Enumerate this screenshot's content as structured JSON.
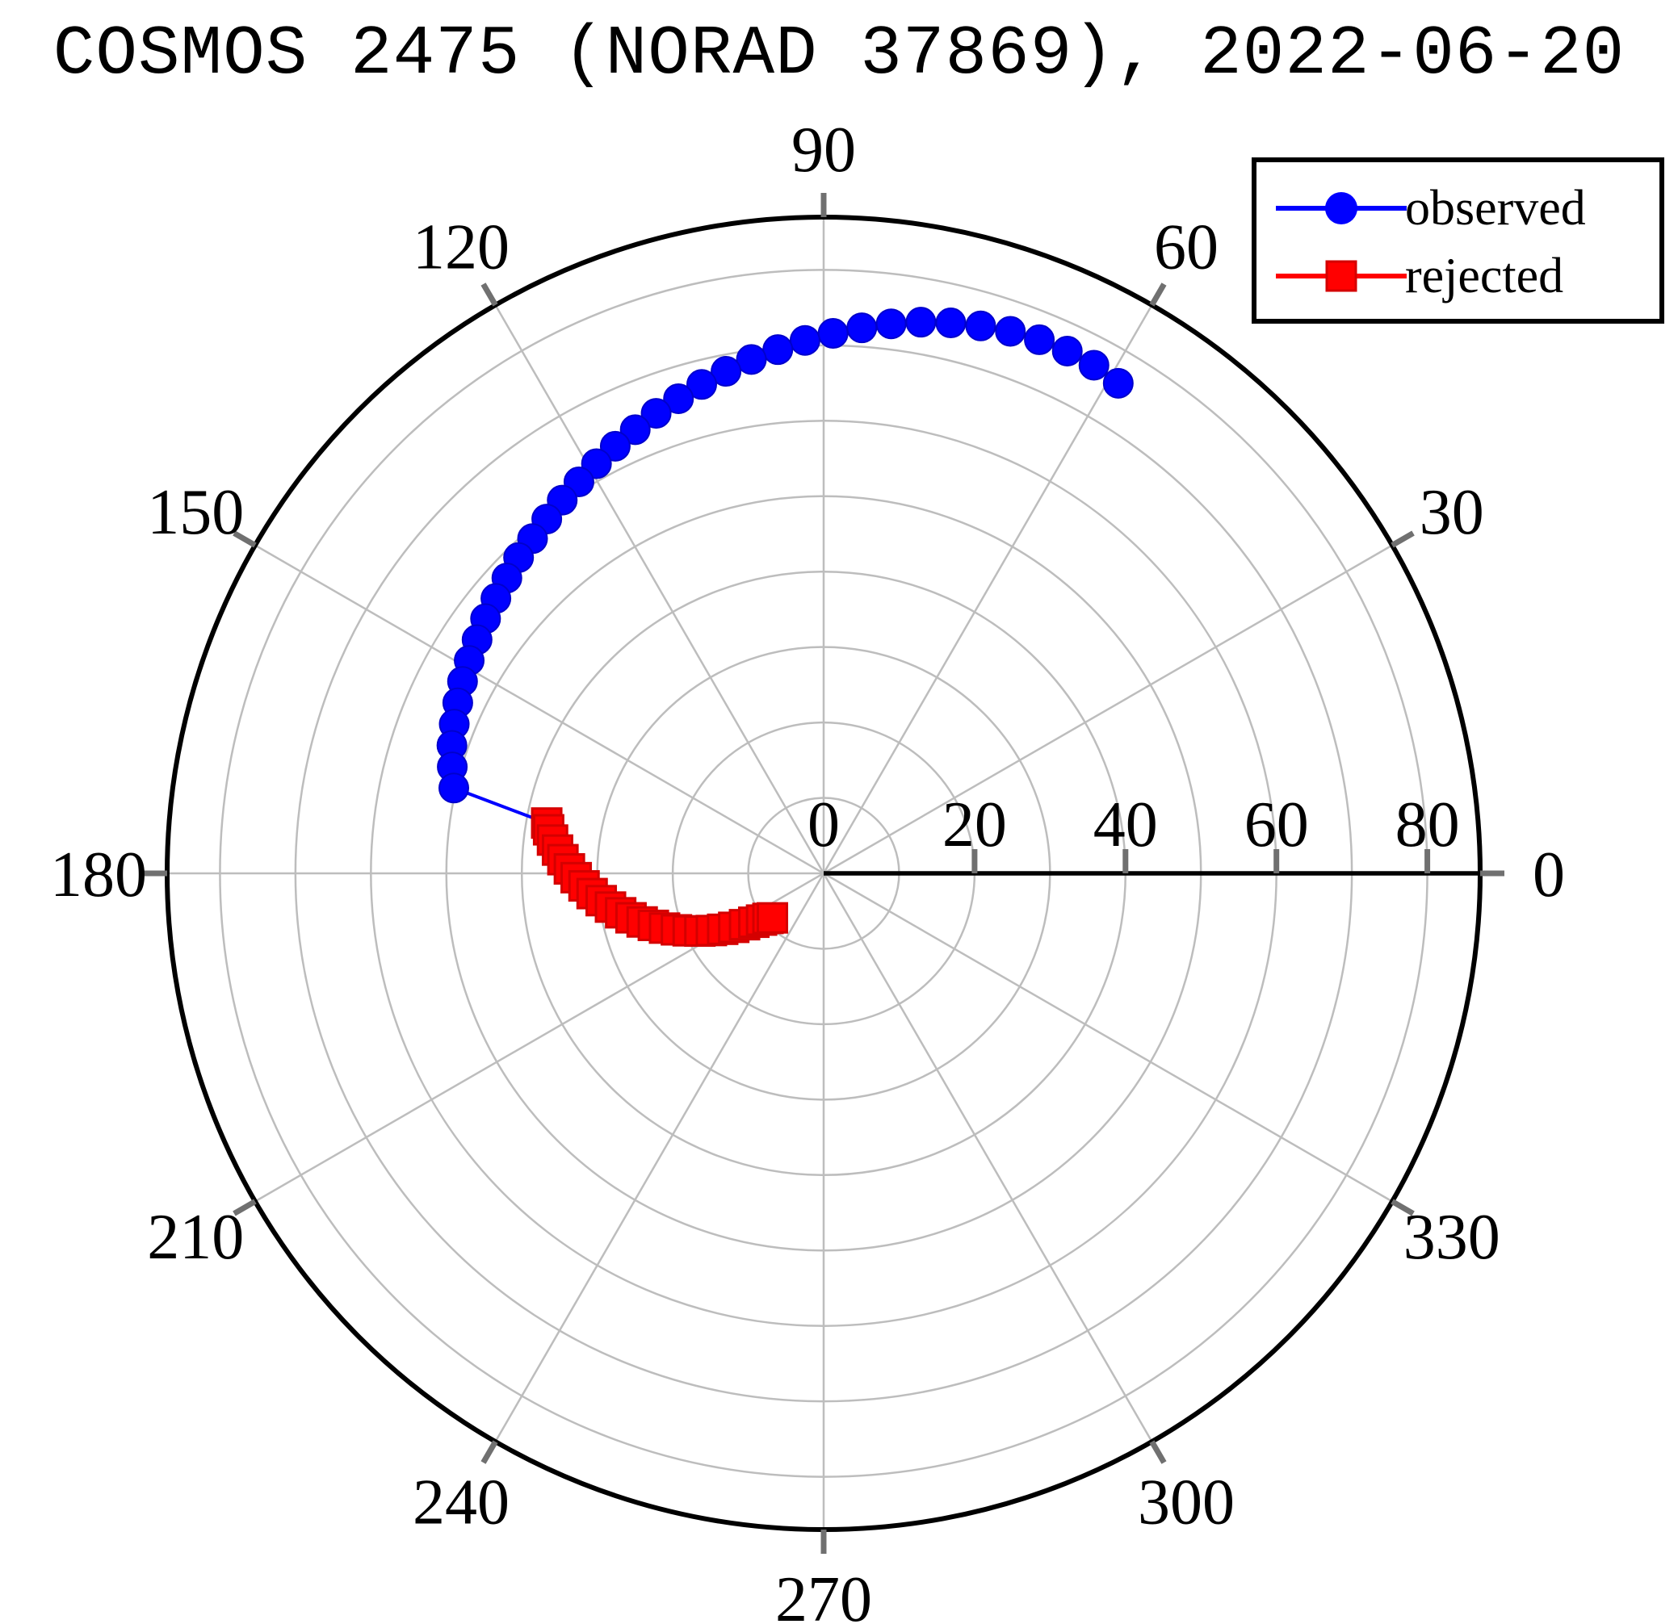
{
  "chart_data": {
    "type": "scatter",
    "projection": "polar",
    "title": "COSMOS 2475 (NORAD 37869), 2022-06-20",
    "theta_ticks": [
      0,
      30,
      60,
      90,
      120,
      150,
      180,
      210,
      240,
      270,
      300,
      330
    ],
    "r_ticks": [
      0,
      20,
      40,
      60,
      80
    ],
    "r_lim": [
      0,
      87
    ],
    "grid": true,
    "legend_position": "top-right",
    "series": [
      {
        "name": "observed",
        "color": "#0000ff",
        "marker": "circle",
        "theta": [
          59,
          62,
          65,
          68,
          71,
          74,
          77,
          80,
          83,
          86,
          89,
          92,
          95,
          98,
          101,
          104,
          107,
          110,
          113,
          116,
          119,
          122,
          125,
          128,
          131,
          134,
          137,
          140,
          143,
          146,
          149,
          152,
          155,
          158,
          161,
          164,
          167,
          169.7
        ],
        "r": [
          75.8,
          76.3,
          76.4,
          76.3,
          76.0,
          75.5,
          74.9,
          74.2,
          73.4,
          72.5,
          71.6,
          70.7,
          69.7,
          68.8,
          67.8,
          66.8,
          65.8,
          64.9,
          63.9,
          63.0,
          62.1,
          61.2,
          60.4,
          59.6,
          58.8,
          58.2,
          57.4,
          56.7,
          56.1,
          55.4,
          54.8,
          54.2,
          53.5,
          52.8,
          52.1,
          51.2,
          50.3,
          37.3
        ]
      },
      {
        "name": "rejected",
        "color": "#ff0000",
        "marker": "square",
        "theta": [
          169.7,
          171,
          173,
          175,
          177,
          179,
          181,
          183,
          185,
          187,
          189,
          191,
          193,
          195,
          197,
          199,
          201,
          203,
          205,
          207,
          209,
          211,
          213,
          215,
          217,
          219,
          221
        ],
        "r": [
          37.3,
          36.9,
          36.2,
          35.4,
          34.6,
          33.7,
          32.8,
          31.8,
          30.8,
          29.7,
          28.6,
          27.4,
          26.2,
          24.9,
          23.6,
          22.3,
          20.9,
          19.5,
          18.1,
          16.7,
          15.3,
          13.9,
          12.5,
          11.3,
          10.3,
          9.5,
          9.0
        ]
      }
    ]
  }
}
